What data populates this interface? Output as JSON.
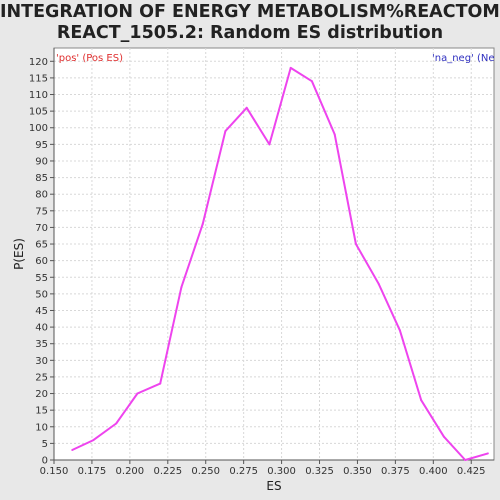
{
  "chart_data": {
    "type": "line",
    "title_lines": [
      "INTEGRATION OF ENERGY METABOLISM%REACTOME%",
      "REACT_1505.2: Random ES distribution"
    ],
    "xlabel": "ES",
    "ylabel": "P(ES)",
    "xlim": [
      0.15,
      0.44
    ],
    "ylim": [
      0,
      124
    ],
    "x_ticks": [
      "0.150",
      "0.175",
      "0.200",
      "0.225",
      "0.250",
      "0.275",
      "0.300",
      "0.325",
      "0.350",
      "0.375",
      "0.400",
      "0.425"
    ],
    "y_ticks": [
      "0",
      "5",
      "10",
      "15",
      "20",
      "25",
      "30",
      "35",
      "40",
      "45",
      "50",
      "55",
      "60",
      "65",
      "70",
      "75",
      "80",
      "85",
      "90",
      "95",
      "100",
      "105",
      "110",
      "115",
      "120"
    ],
    "grid": true,
    "legend": [
      {
        "label": "'pos' (Pos ES)",
        "color": "#e03030",
        "placement": "top-left"
      },
      {
        "label": "'na_neg' (Neg ES)",
        "color": "#3030c0",
        "placement": "top-right"
      }
    ],
    "series": [
      {
        "color": "#ee44ee",
        "x": [
          0.162,
          0.176,
          0.191,
          0.205,
          0.22,
          0.234,
          0.248,
          0.263,
          0.277,
          0.292,
          0.306,
          0.32,
          0.335,
          0.349,
          0.364,
          0.378,
          0.392,
          0.407,
          0.421,
          0.436
        ],
        "y": [
          3,
          6,
          11,
          20,
          23,
          52,
          71,
          99,
          106,
          95,
          118,
          114,
          98,
          65,
          53,
          39,
          18,
          7,
          0,
          2
        ]
      }
    ]
  }
}
